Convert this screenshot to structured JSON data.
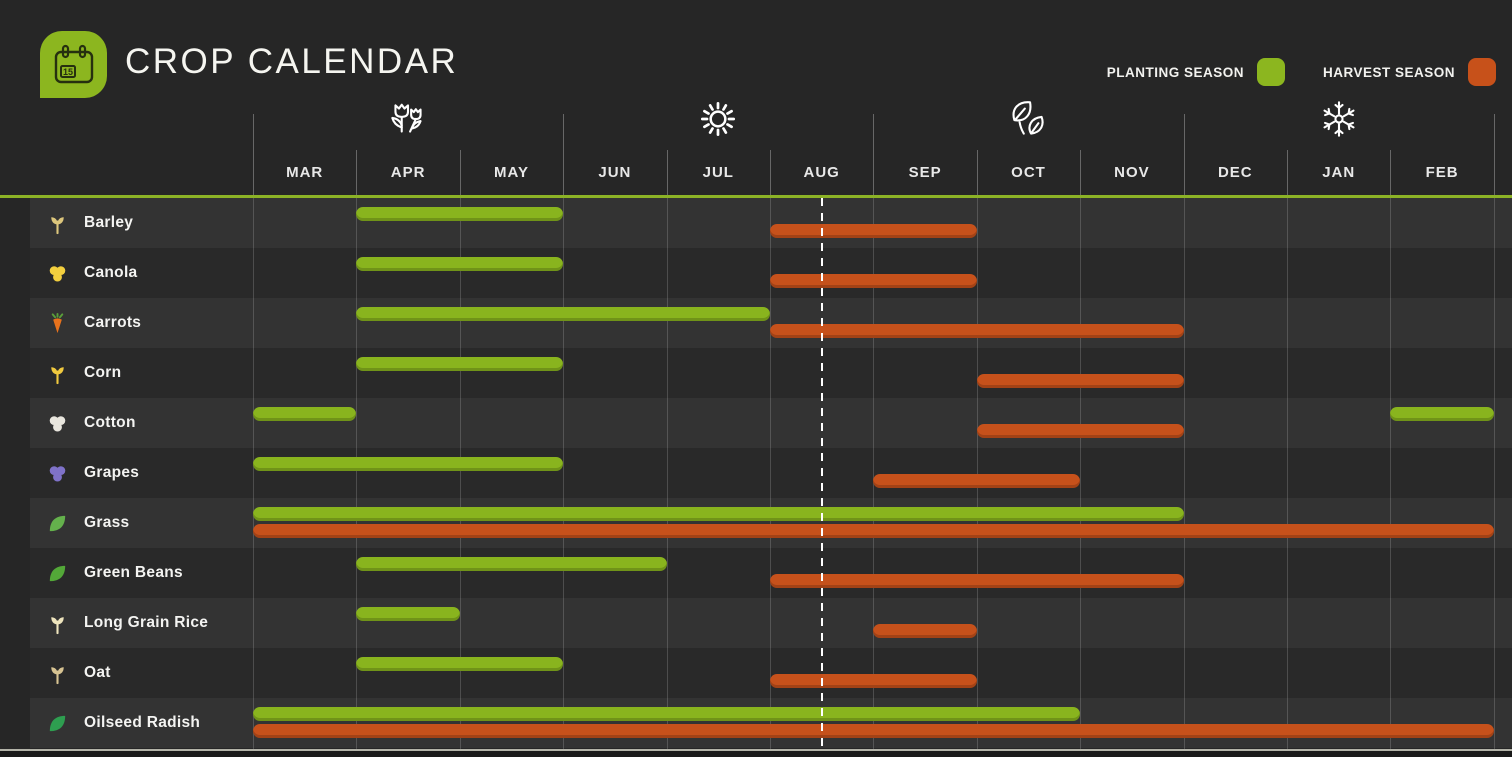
{
  "header": {
    "title": "CROP CALENDAR",
    "logo_day": "15",
    "legend": [
      {
        "key": "planting",
        "label": "PLANTING SEASON",
        "color": "#8cb61f"
      },
      {
        "key": "harvest",
        "label": "HARVEST SEASON",
        "color": "#c7511a"
      }
    ]
  },
  "colors": {
    "planting_bar": "#89b41e",
    "harvest_bar": "#c6511b",
    "background": "#262626",
    "row_light": "#333333",
    "row_dark": "#292929",
    "top_rule": "#8cb226",
    "logo_background": "#8cb61f",
    "today_line": "#ffffff"
  },
  "chart_data": {
    "type": "bar",
    "subtype": "gantt-crop-calendar",
    "title": "CROP CALENDAR",
    "months": [
      "MAR",
      "APR",
      "MAY",
      "JUN",
      "JUL",
      "AUG",
      "SEP",
      "OCT",
      "NOV",
      "DEC",
      "JAN",
      "FEB"
    ],
    "seasons": [
      {
        "name": "spring",
        "icon": "tulips-icon",
        "center_month": "APR"
      },
      {
        "name": "summer",
        "icon": "sun-icon",
        "center_month": "JUL"
      },
      {
        "name": "autumn",
        "icon": "leaves-icon",
        "center_month": "OCT"
      },
      {
        "name": "winter",
        "icon": "snowflake-icon",
        "center_month": "JAN"
      }
    ],
    "legend": [
      "PLANTING SEASON",
      "HARVEST SEASON"
    ],
    "legend_position": "top-right",
    "today_marker": {
      "month": "AUG",
      "position_within_month": 0.5,
      "label": "mid-August"
    },
    "rows": [
      {
        "crop": "Barley",
        "icon": "barley-icon",
        "icon_shape": "grain",
        "icon_color": "#dcc67c",
        "planting": [
          [
            "APR",
            "MAY"
          ]
        ],
        "harvest": [
          [
            "AUG",
            "SEP"
          ]
        ]
      },
      {
        "crop": "Canola",
        "icon": "canola-icon",
        "icon_shape": "round",
        "icon_color": "#f3cf3e",
        "planting": [
          [
            "APR",
            "MAY"
          ]
        ],
        "harvest": [
          [
            "AUG",
            "SEP"
          ]
        ]
      },
      {
        "crop": "Carrots",
        "icon": "carrot-icon",
        "icon_shape": "root",
        "icon_color": "#e8721c",
        "planting": [
          [
            "APR",
            "JUL"
          ]
        ],
        "harvest": [
          [
            "AUG",
            "NOV"
          ]
        ]
      },
      {
        "crop": "Corn",
        "icon": "corn-icon",
        "icon_shape": "grain",
        "icon_color": "#f0c93f",
        "planting": [
          [
            "APR",
            "MAY"
          ]
        ],
        "harvest": [
          [
            "OCT",
            "NOV"
          ]
        ]
      },
      {
        "crop": "Cotton",
        "icon": "cotton-icon",
        "icon_shape": "round",
        "icon_color": "#e9e6de",
        "planting": [
          [
            "MAR",
            "MAR"
          ],
          [
            "FEB",
            "FEB"
          ]
        ],
        "harvest": [
          [
            "OCT",
            "NOV"
          ]
        ]
      },
      {
        "crop": "Grapes",
        "icon": "grapes-icon",
        "icon_shape": "round",
        "icon_color": "#7f72c9",
        "planting": [
          [
            "MAR",
            "MAY"
          ]
        ],
        "harvest": [
          [
            "SEP",
            "OCT"
          ]
        ]
      },
      {
        "crop": "Grass",
        "icon": "grass-icon",
        "icon_shape": "leaf",
        "icon_color": "#64b14c",
        "planting": [
          [
            "MAR",
            "NOV"
          ]
        ],
        "harvest": [
          [
            "MAR",
            "FEB"
          ]
        ]
      },
      {
        "crop": "Green Beans",
        "icon": "green-beans-icon",
        "icon_shape": "leaf",
        "icon_color": "#53a838",
        "planting": [
          [
            "APR",
            "JUN"
          ]
        ],
        "harvest": [
          [
            "AUG",
            "NOV"
          ]
        ]
      },
      {
        "crop": "Long Grain Rice",
        "icon": "rice-icon",
        "icon_shape": "grain",
        "icon_color": "#eee4bd",
        "planting": [
          [
            "APR",
            "APR"
          ]
        ],
        "harvest": [
          [
            "SEP",
            "SEP"
          ]
        ]
      },
      {
        "crop": "Oat",
        "icon": "oat-icon",
        "icon_shape": "grain",
        "icon_color": "#d7c392",
        "planting": [
          [
            "APR",
            "MAY"
          ]
        ],
        "harvest": [
          [
            "AUG",
            "SEP"
          ]
        ]
      },
      {
        "crop": "Oilseed Radish",
        "icon": "oilseed-radish-icon",
        "icon_shape": "leaf",
        "icon_color": "#2e9e50",
        "planting": [
          [
            "MAR",
            "OCT"
          ]
        ],
        "harvest": [
          [
            "MAR",
            "FEB"
          ]
        ]
      }
    ]
  }
}
